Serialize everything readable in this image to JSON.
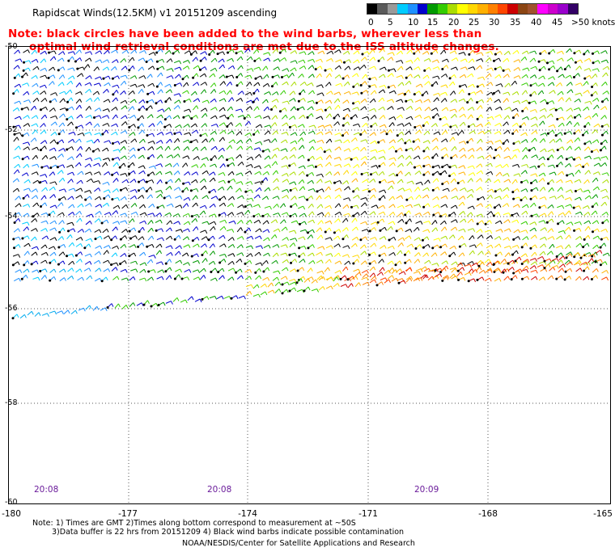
{
  "title": "Rapidscat Winds(12.5KM) v1 20151209 ascending",
  "note": {
    "line1": "Note: black circles have been added to the wind barbs, wherever less than",
    "line2": "optimal wind retrieval conditions are met due to the ISS altitude changes."
  },
  "legend": {
    "labels": [
      "0",
      "5",
      "10",
      "15",
      "20",
      "25",
      "30",
      "35",
      "40",
      "45",
      ">50 knots"
    ],
    "colors": [
      "#000000",
      "#5a5a5a",
      "#9a9a9a",
      "#00ccff",
      "#1e90ff",
      "#0000cd",
      "#009900",
      "#33cc00",
      "#aadd00",
      "#ffff00",
      "#ffd700",
      "#ffb000",
      "#ff8000",
      "#ff4500",
      "#cc0000",
      "#8b4513",
      "#a0522d",
      "#ff00ff",
      "#cc00cc",
      "#9900cc",
      "#330066"
    ]
  },
  "map": {
    "lat_labels": [
      "-50",
      "-52",
      "-54",
      "-56",
      "-58",
      "-60"
    ],
    "lon_labels": [
      "-180",
      "-177",
      "-174",
      "-171",
      "-168",
      "-165"
    ],
    "time_labels": [
      "20:08",
      "20:08",
      "20:09"
    ]
  },
  "footer": {
    "note1": "Note: 1) Times are GMT 2)Times along bottom correspond to measurement at ~50S",
    "note2": "3)Data buffer is 22 hrs from 20151209 4) Black wind barbs indicate possible contamination",
    "credit": "NOAA/NESDIS/Center for Satellite Applications and Research"
  }
}
